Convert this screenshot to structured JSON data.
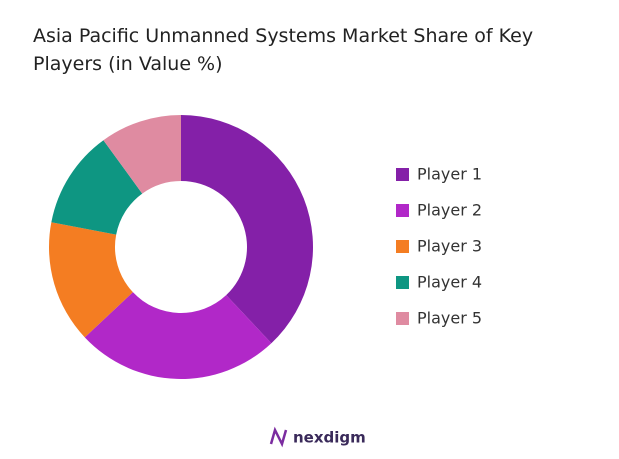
{
  "chart_data": {
    "type": "donut",
    "title": "Asia Pacific Unmanned Systems Market Share of Key Players (in Value %)",
    "categories": [
      "Player 1",
      "Player 2",
      "Player 3",
      "Player 4",
      "Player 5"
    ],
    "values": [
      38,
      25,
      15,
      12,
      10
    ],
    "colors": [
      "#8420a8",
      "#b128c8",
      "#f47d22",
      "#0e9682",
      "#df8ba1"
    ],
    "legend": "right"
  },
  "branding": {
    "logo_text": "nexdigm"
  }
}
